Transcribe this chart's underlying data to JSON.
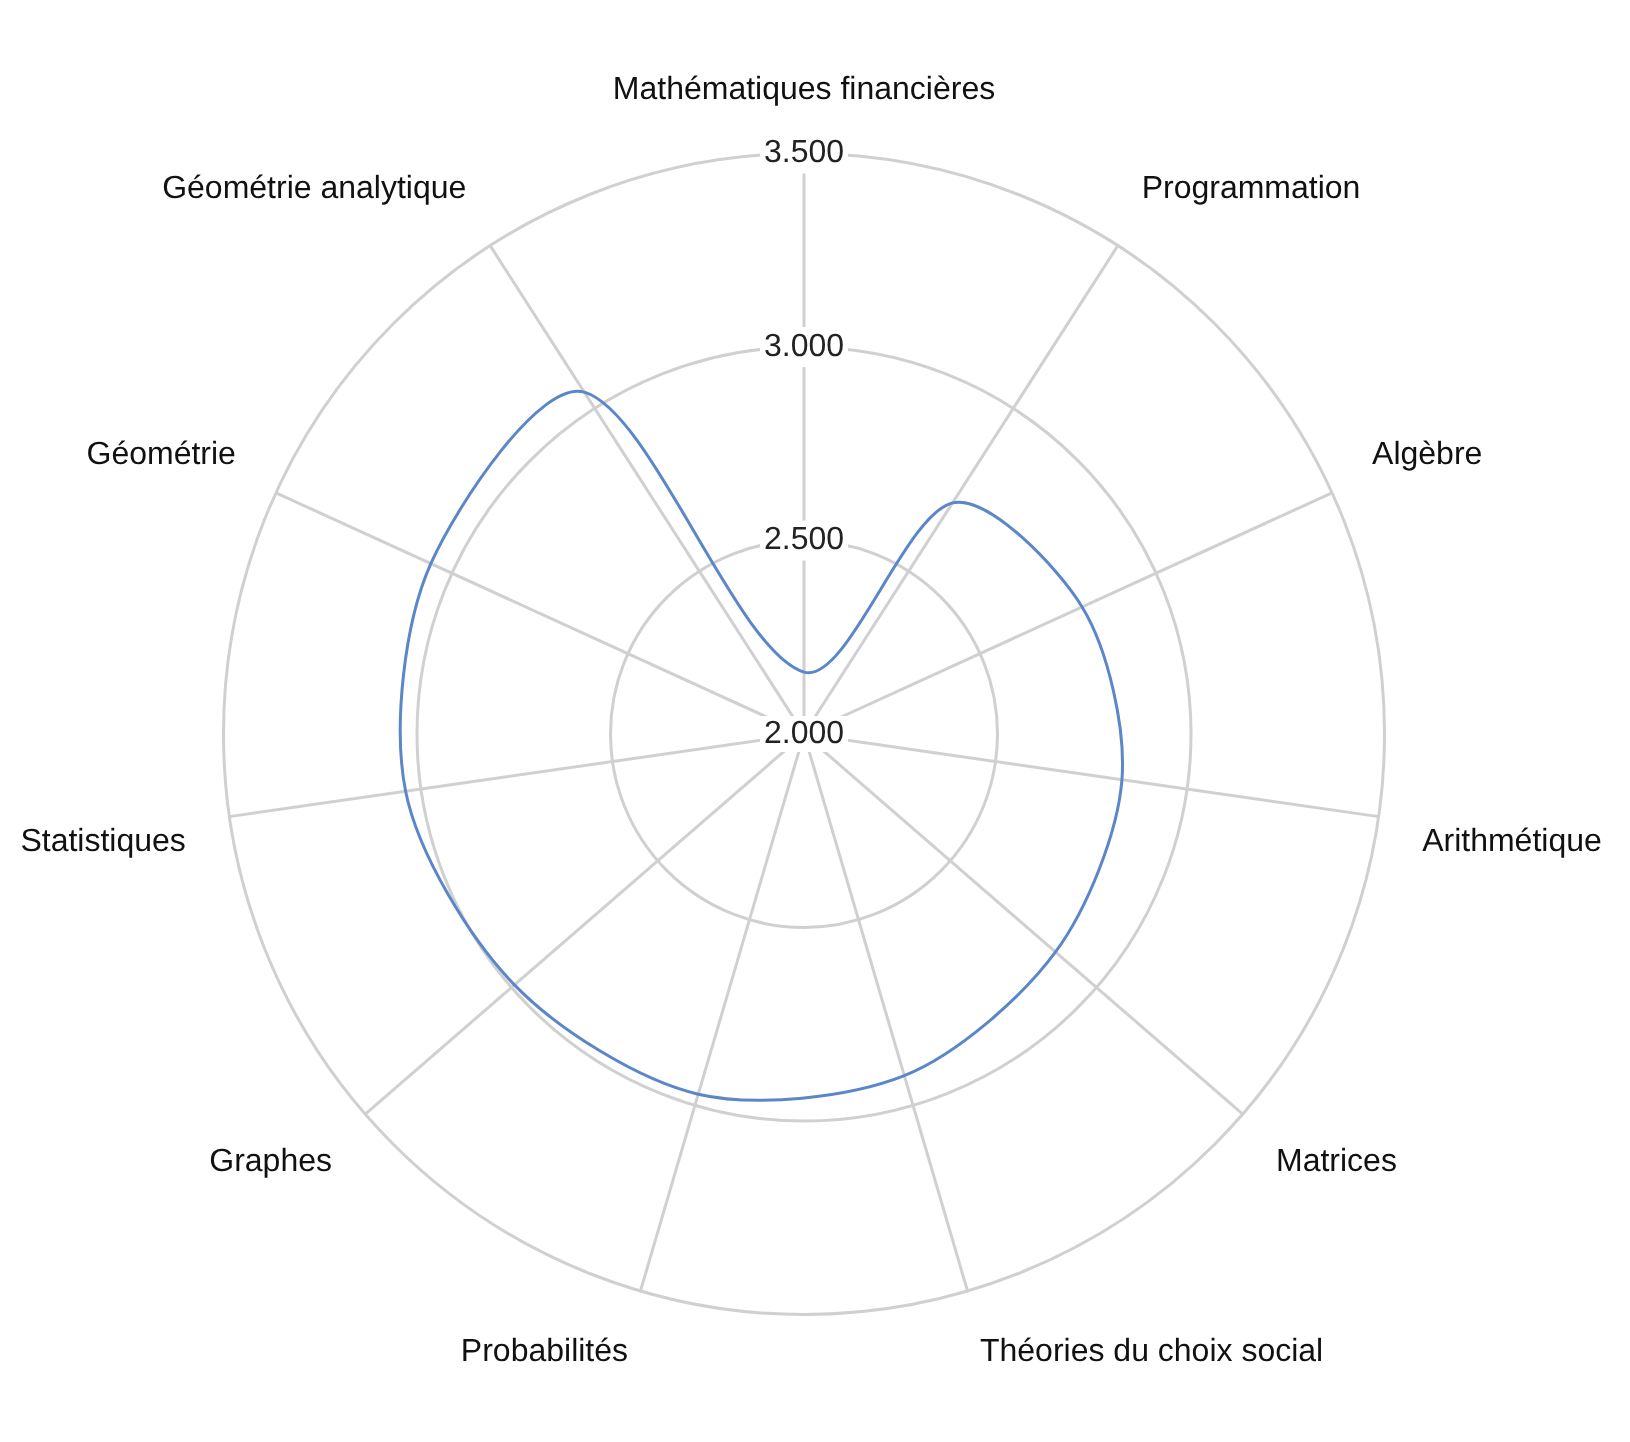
{
  "chart_data": {
    "type": "radar",
    "categories": [
      "Mathématiques financières",
      "Programmation",
      "Algèbre",
      "Arithmétique",
      "Matrices",
      "Théories du choix social",
      "Probabilités",
      "Graphes",
      "Statistiques",
      "Géométrie",
      "Géométrie analytique"
    ],
    "series": [
      {
        "color": "#5b87c9",
        "values": [
          2.16,
          2.71,
          2.79,
          2.83,
          2.86,
          2.92,
          2.97,
          2.99,
          3.04,
          3.06,
          3.05
        ]
      }
    ],
    "ylim": [
      2,
      3.5
    ],
    "yticks": [
      {
        "value": 2,
        "label": "2.000"
      },
      {
        "value": 2.5,
        "label": "2.500"
      },
      {
        "value": 3,
        "label": "3.000"
      },
      {
        "value": 3.5,
        "label": "3.500"
      }
    ],
    "grid": true,
    "legend": false,
    "marker": "none",
    "line_style": "solid"
  }
}
